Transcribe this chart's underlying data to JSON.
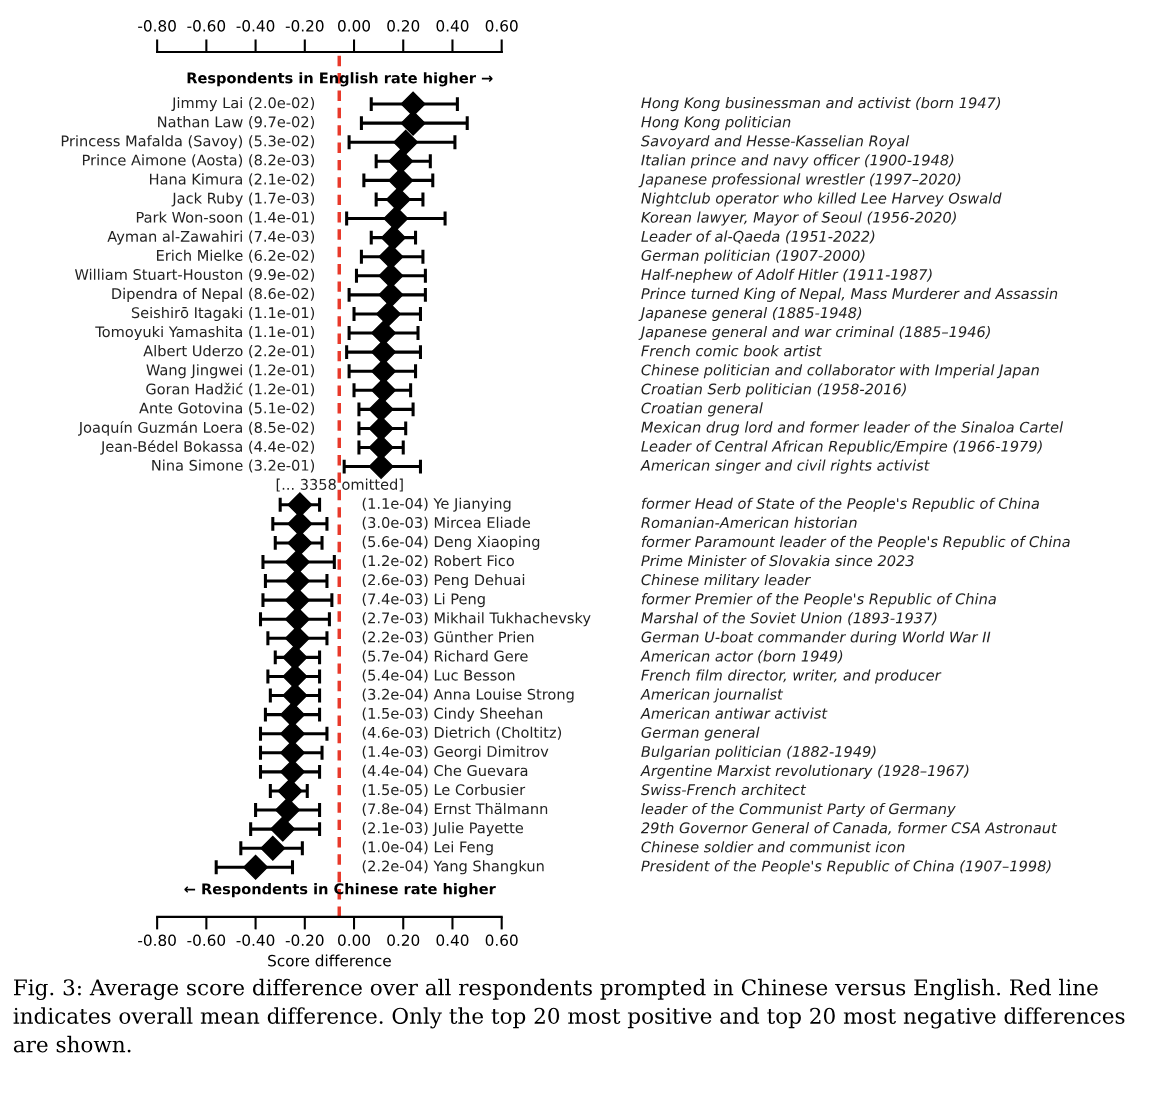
{
  "chart_data": {
    "type": "scatter",
    "orientation": "horizontal",
    "marker": "diamond",
    "color": "#000000",
    "grid": false,
    "xlabel": "Score difference",
    "xlim": [
      -0.8,
      0.6
    ],
    "xticks": [
      {
        "value": -0.8,
        "label": "-0.80"
      },
      {
        "value": -0.6,
        "label": "-0.60"
      },
      {
        "value": -0.4,
        "label": "-0.40"
      },
      {
        "value": -0.2,
        "label": "-0.20"
      },
      {
        "value": 0,
        "label": "0.00"
      },
      {
        "value": 0.2,
        "label": "0.20"
      },
      {
        "value": 0.4,
        "label": "0.40"
      },
      {
        "value": 0.6,
        "label": "0.60"
      }
    ],
    "x2lim": [
      -0.8,
      0.6
    ],
    "x2ticks": [
      {
        "value": -0.8,
        "label": "-0.80"
      },
      {
        "value": -0.6,
        "label": "-0.60"
      },
      {
        "value": -0.4,
        "label": "-0.40"
      },
      {
        "value": -0.2,
        "label": "-0.20"
      },
      {
        "value": 0,
        "label": "0.00"
      },
      {
        "value": 0.2,
        "label": "0.20"
      },
      {
        "value": 0.4,
        "label": "0.40"
      },
      {
        "value": 0.6,
        "label": "0.60"
      }
    ],
    "categories": [
      "Jimmy Lai (2.0e-02)",
      "Nathan Law (9.7e-02)",
      "Princess Mafalda (Savoy) (5.3e-02)",
      "Prince Aimone (Aosta) (8.2e-03)",
      "Hana Kimura (2.1e-02)",
      "Jack Ruby (1.7e-03)",
      "Park Won-soon (1.4e-01)",
      "Ayman al-Zawahiri (7.4e-03)",
      "Erich Mielke (6.2e-02)",
      "William Stuart-Houston (9.9e-02)",
      "Dipendra of Nepal (8.6e-02)",
      "Seishirō Itagaki (1.1e-01)",
      "Tomoyuki Yamashita (1.1e-01)",
      "Albert Uderzo (2.2e-01)",
      "Wang Jingwei (1.2e-01)",
      "Goran Hadžić (1.2e-01)",
      "Ante Gotovina (5.1e-02)",
      "Joaquín Guzmán Loera (8.5e-02)",
      "Jean-Bédel Bokassa (4.4e-02)",
      "Nina Simone (3.2e-01)",
      "[... 3358 omitted]",
      "(1.1e-04) Ye Jianying",
      "(3.0e-03) Mircea Eliade",
      "(5.6e-04) Deng Xiaoping",
      "(1.2e-02) Robert Fico",
      "(2.6e-03) Peng Dehuai",
      "(7.4e-03) Li Peng",
      "(2.7e-03) Mikhail Tukhachevsky",
      "(2.2e-03) Günther Prien",
      "(5.7e-04) Richard Gere",
      "(5.4e-04) Luc Besson",
      "(3.2e-04) Anna Louise Strong",
      "(1.5e-03) Cindy Sheehan",
      "(4.6e-03) Dietrich (Choltitz)",
      "(1.4e-03) Georgi Dimitrov",
      "(4.4e-04) Che Guevara",
      "(1.5e-05) Le Corbusier",
      "(7.8e-04) Ernst Thälmann",
      "(2.1e-03) Julie Payette",
      "(1.0e-04) Lei Feng",
      "(2.2e-04) Yang Shangkun"
    ],
    "y2_categories": [
      "Hong Kong businessman and activist (born 1947)",
      "Hong Kong politician",
      "Savoyard and Hesse-Kasselian Royal",
      "Italian prince and navy officer (1900-1948)",
      "Japanese professional wrestler (1997–2020)",
      "Nightclub operator who killed Lee Harvey Oswald",
      "Korean lawyer, Mayor of Seoul (1956-2020)",
      "Leader of al-Qaeda (1951-2022)",
      "German politician (1907-2000)",
      "Half-nephew of Adolf Hitler (1911-1987)",
      "Prince turned King of Nepal, Mass Murderer and Assassin",
      "Japanese general (1885-1948)",
      "Japanese general and war criminal (1885–1946)",
      "French comic book artist",
      "Chinese politician and collaborator with Imperial Japan",
      "Croatian Serb politician (1958-2016)",
      "Croatian general",
      "Mexican drug lord and former leader of the Sinaloa Cartel",
      "Leader of Central African Republic/Empire (1966-1979)",
      "American singer and civil rights activist",
      null,
      "former Head of State of the People's Republic of China",
      "Romanian-American historian",
      "former Paramount leader of the People's Republic of China",
      "Prime Minister of Slovakia since 2023",
      "Chinese military leader",
      "former Premier of the People's Republic of China",
      "Marshal of the Soviet Union (1893-1937)",
      "German U-boat commander during World War II",
      "American actor (born 1949)",
      "French film director, writer, and producer",
      "American journalist",
      "American antiwar activist",
      "German general",
      "Bulgarian politician (1882-1949)",
      "Argentine Marxist revolutionary (1928–1967)",
      "Swiss-French architect",
      "leader of the Communist Party of Germany",
      "29th Governor General of Canada, former CSA Astronaut",
      "Chinese soldier and communist icon",
      "President of the People's Republic of China (1907–1998)"
    ],
    "values": [
      0.24,
      0.24,
      0.21,
      0.19,
      0.19,
      0.18,
      0.17,
      0.16,
      0.15,
      0.15,
      0.15,
      0.14,
      0.12,
      0.12,
      0.12,
      0.12,
      0.11,
      0.11,
      0.11,
      0.11,
      null,
      -0.22,
      -0.22,
      -0.22,
      -0.23,
      -0.23,
      -0.23,
      -0.23,
      -0.23,
      -0.24,
      -0.24,
      -0.24,
      -0.25,
      -0.25,
      -0.25,
      -0.25,
      -0.26,
      -0.27,
      -0.29,
      -0.33,
      -0.4
    ],
    "errors": [
      [
        0.07,
        0.42
      ],
      [
        0.03,
        0.46
      ],
      [
        -0.02,
        0.41
      ],
      [
        0.09,
        0.31
      ],
      [
        0.04,
        0.32
      ],
      [
        0.09,
        0.28
      ],
      [
        -0.03,
        0.37
      ],
      [
        0.07,
        0.25
      ],
      [
        0.03,
        0.28
      ],
      [
        0.01,
        0.29
      ],
      [
        -0.02,
        0.29
      ],
      [
        0.0,
        0.27
      ],
      [
        -0.02,
        0.26
      ],
      [
        -0.03,
        0.27
      ],
      [
        -0.02,
        0.25
      ],
      [
        0.0,
        0.23
      ],
      [
        0.02,
        0.24
      ],
      [
        0.02,
        0.21
      ],
      [
        0.02,
        0.2
      ],
      [
        -0.04,
        0.27
      ],
      null,
      [
        -0.3,
        -0.14
      ],
      [
        -0.33,
        -0.11
      ],
      [
        -0.32,
        -0.13
      ],
      [
        -0.37,
        -0.08
      ],
      [
        -0.36,
        -0.11
      ],
      [
        -0.37,
        -0.09
      ],
      [
        -0.38,
        -0.1
      ],
      [
        -0.35,
        -0.11
      ],
      [
        -0.32,
        -0.14
      ],
      [
        -0.35,
        -0.14
      ],
      [
        -0.34,
        -0.14
      ],
      [
        -0.36,
        -0.14
      ],
      [
        -0.38,
        -0.11
      ],
      [
        -0.38,
        -0.13
      ],
      [
        -0.38,
        -0.14
      ],
      [
        -0.34,
        -0.19
      ],
      [
        -0.4,
        -0.14
      ],
      [
        -0.42,
        -0.14
      ],
      [
        -0.46,
        -0.21
      ],
      [
        -0.56,
        -0.25
      ]
    ],
    "ref_lines": [
      {
        "axis": "x",
        "value": -0.06,
        "color": "#e8392a",
        "line_style": "dashed"
      }
    ],
    "annotations": [
      "Respondents in English rate higher →",
      "← Respondents in Chinese rate higher",
      "Fig. 3: Average score difference over all respondents prompted in Chinese versus English. Red line indicates overall mean difference. Only the top 20 most positive and top 20 most negative differences are shown."
    ]
  }
}
